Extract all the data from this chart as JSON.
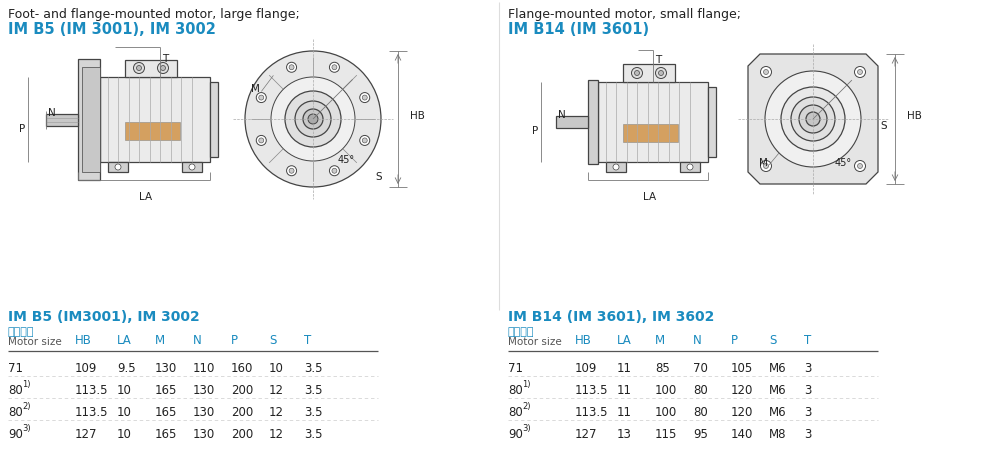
{
  "bg_color": "#ffffff",
  "cyan_color": "#1a8bbf",
  "text_color": "#333333",
  "dark_color": "#222222",
  "light_gray": "#777777",
  "line_color": "#444444",
  "table_line_color": "#bbbbbb",
  "left_title_line1": "Foot- and flange-mounted motor, large flange;",
  "left_title_line2": "IM B5 (IM 3001), IM 3002",
  "right_title_line1": "Flange-mounted motor, small flange;",
  "right_title_line2": "IM B14 (IM 3601)",
  "left_table_title": "IM B5 (IM3001), IM 3002",
  "right_table_title": "IM B14 (IM 3601), IM 3602",
  "col_headers": [
    "HB",
    "LA",
    "M",
    "N",
    "P",
    "S",
    "T"
  ],
  "row_label_cn": "电机尺寸",
  "row_label_en": "Motor size",
  "left_rows_display": [
    [
      "71",
      "109",
      "9.5",
      "130",
      "110",
      "160",
      "10",
      "3.5"
    ],
    [
      "80 1)",
      "113.5",
      "10",
      "165",
      "130",
      "200",
      "12",
      "3.5"
    ],
    [
      "80 2)",
      "113.5",
      "10",
      "165",
      "130",
      "200",
      "12",
      "3.5"
    ],
    [
      "90 3)",
      "127",
      "10",
      "165",
      "130",
      "200",
      "12",
      "3.5"
    ]
  ],
  "right_rows_display": [
    [
      "71",
      "109",
      "11",
      "85",
      "70",
      "105",
      "M6",
      "3"
    ],
    [
      "80 1)",
      "113.5",
      "11",
      "100",
      "80",
      "120",
      "M6",
      "3"
    ],
    [
      "80 2)",
      "113.5",
      "11",
      "100",
      "80",
      "120",
      "M6",
      "3"
    ],
    [
      "90 3)",
      "127",
      "13",
      "115",
      "95",
      "140",
      "M8",
      "3"
    ]
  ]
}
